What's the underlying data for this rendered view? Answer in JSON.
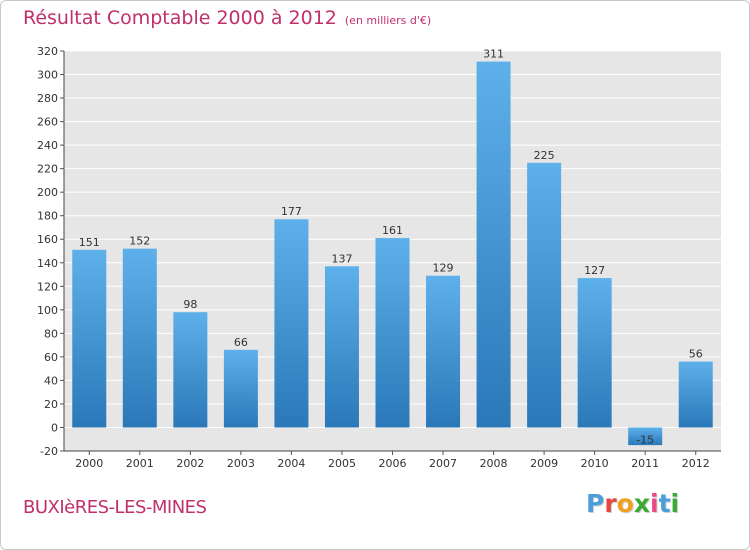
{
  "header": {
    "title": "Résultat Comptable 2000 à 2012",
    "unit": "(en milliers d'€)"
  },
  "footer": {
    "commune": "BUXIèRES-LES-MINES",
    "brand_letters": [
      "P",
      "r",
      "o",
      "x",
      "i",
      "t",
      "i"
    ],
    "brand_colors": [
      "#4a9fd8",
      "#e8463c",
      "#f0a020",
      "#3aaa35",
      "#e84a8a",
      "#4a9fd8",
      "#3aaa35"
    ]
  },
  "chart_data": {
    "type": "bar",
    "categories": [
      "2000",
      "2001",
      "2002",
      "2003",
      "2004",
      "2005",
      "2006",
      "2007",
      "2008",
      "2009",
      "2010",
      "2011",
      "2012"
    ],
    "values": [
      151,
      152,
      98,
      66,
      177,
      137,
      161,
      129,
      311,
      225,
      127,
      -15,
      56
    ],
    "data_labels": [
      "151",
      "152",
      "98",
      "66",
      "177",
      "137",
      "161",
      "129",
      "311",
      "225",
      "127",
      "-15",
      "56"
    ],
    "ylim": [
      -20,
      320
    ],
    "yticks": [
      -20,
      0,
      20,
      40,
      60,
      80,
      100,
      120,
      140,
      160,
      180,
      200,
      220,
      240,
      260,
      280,
      300,
      320
    ],
    "grid": true,
    "colors": {
      "bar_top": "#5eb0ea",
      "bar_bottom": "#2a78b8",
      "plot_bg": "#e6e6e6",
      "grid": "#ffffff",
      "title": "#c0306a"
    }
  }
}
